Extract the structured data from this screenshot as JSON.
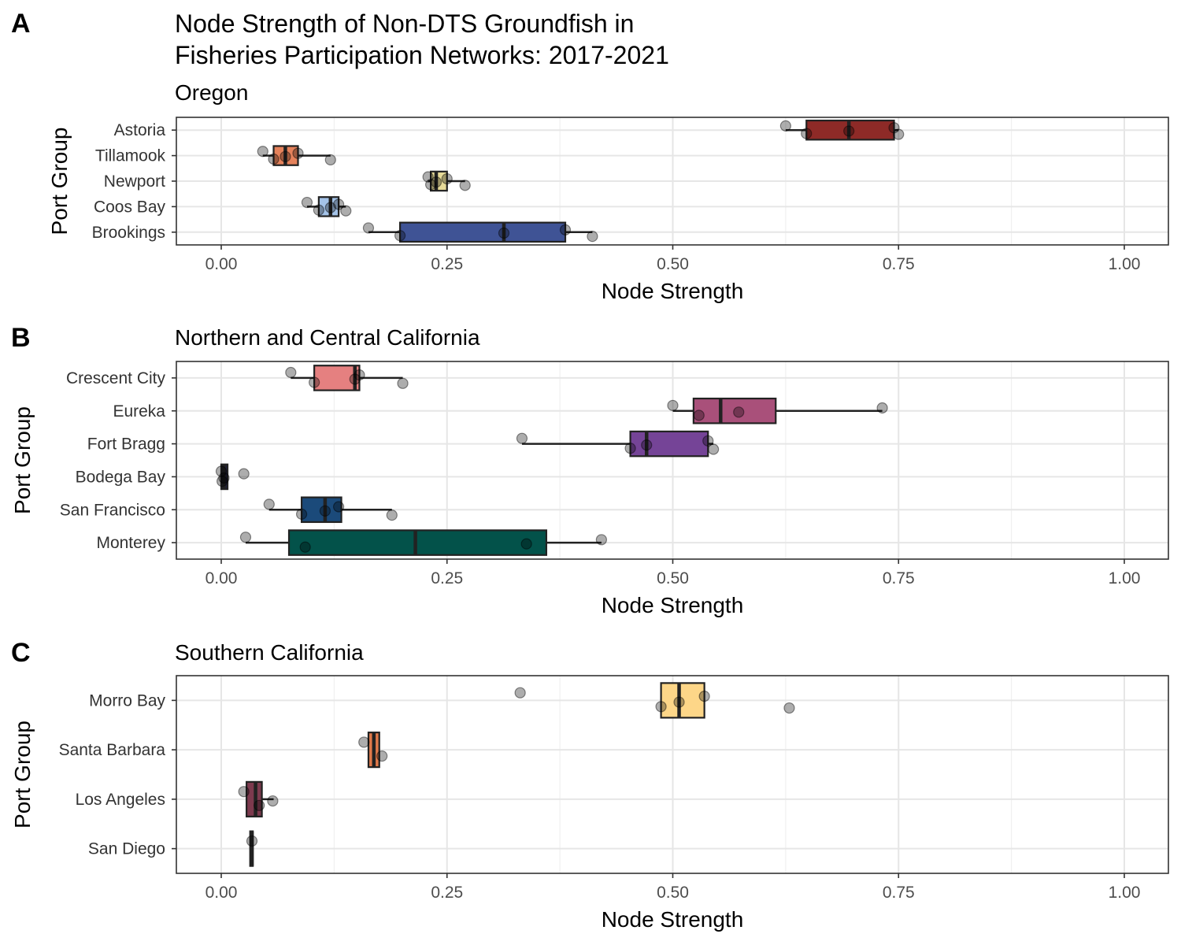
{
  "title_line1": "Node Strength of Non-DTS Groundfish in",
  "title_line2": "Fisheries Participation Networks: 2017-2021",
  "chart_data": [
    {
      "type": "boxplot",
      "tag": "A",
      "subtitle": "Oregon",
      "xlabel": "Node Strength",
      "ylabel": "Port Group",
      "xlim": [
        0,
        1
      ],
      "xticks": [
        0,
        0.25,
        0.5,
        0.75,
        1
      ],
      "xtick_labels": [
        "0.00",
        "0.25",
        "0.50",
        "0.75",
        "1.00"
      ],
      "grid": true,
      "groups": [
        {
          "label": "Astoria",
          "color": "#8e2a27",
          "min": 0.625,
          "q1": 0.648,
          "median": 0.695,
          "q3": 0.745,
          "max": 0.75,
          "points": [
            0.625,
            0.648,
            0.695,
            0.745,
            0.75
          ]
        },
        {
          "label": "Tillamook",
          "color": "#e5825b",
          "min": 0.046,
          "q1": 0.058,
          "median": 0.071,
          "q3": 0.085,
          "max": 0.121,
          "points": [
            0.046,
            0.058,
            0.071,
            0.085,
            0.121
          ]
        },
        {
          "label": "Newport",
          "color": "#e6da98",
          "min": 0.229,
          "q1": 0.232,
          "median": 0.238,
          "q3": 0.25,
          "max": 0.27,
          "points": [
            0.229,
            0.232,
            0.238,
            0.25,
            0.27
          ]
        },
        {
          "label": "Coos Bay",
          "color": "#a4c3e8",
          "min": 0.095,
          "q1": 0.108,
          "median": 0.121,
          "q3": 0.13,
          "max": 0.138,
          "points": [
            0.095,
            0.108,
            0.121,
            0.13,
            0.138
          ]
        },
        {
          "label": "Brookings",
          "color": "#3f5395",
          "min": 0.163,
          "q1": 0.198,
          "median": 0.313,
          "q3": 0.381,
          "max": 0.411,
          "points": [
            0.163,
            0.198,
            0.313,
            0.381,
            0.411
          ]
        }
      ]
    },
    {
      "type": "boxplot",
      "tag": "B",
      "subtitle": "Northern and Central California",
      "xlabel": "Node Strength",
      "ylabel": "Port Group",
      "xlim": [
        0,
        1
      ],
      "xticks": [
        0,
        0.25,
        0.5,
        0.75,
        1
      ],
      "xtick_labels": [
        "0.00",
        "0.25",
        "0.50",
        "0.75",
        "1.00"
      ],
      "grid": true,
      "groups": [
        {
          "label": "Crescent City",
          "color": "#e58080",
          "min": 0.077,
          "q1": 0.103,
          "median": 0.148,
          "q3": 0.153,
          "max": 0.201,
          "points": [
            0.077,
            0.103,
            0.148,
            0.153,
            0.201
          ]
        },
        {
          "label": "Eureka",
          "color": "#a9507a",
          "min": 0.5,
          "q1": 0.523,
          "median": 0.553,
          "q3": 0.614,
          "max": 0.732,
          "points": [
            0.5,
            0.529,
            0.573,
            0.732
          ]
        },
        {
          "label": "Fort Bragg",
          "color": "#754497",
          "min": 0.333,
          "q1": 0.453,
          "median": 0.471,
          "q3": 0.539,
          "max": 0.545,
          "points": [
            0.333,
            0.453,
            0.471,
            0.539,
            0.545
          ]
        },
        {
          "label": "Bodega Bay",
          "color": "#1f1f3d",
          "min": 0.0,
          "q1": 0.0,
          "median": 0.003,
          "q3": 0.007,
          "max": 0.007,
          "points": [
            0.0,
            0.001,
            0.003,
            0.025
          ]
        },
        {
          "label": "San Francisco",
          "color": "#1b4a7a",
          "min": 0.053,
          "q1": 0.089,
          "median": 0.115,
          "q3": 0.133,
          "max": 0.189,
          "points": [
            0.053,
            0.089,
            0.115,
            0.13,
            0.189
          ]
        },
        {
          "label": "Monterey",
          "color": "#03524a",
          "min": 0.027,
          "q1": 0.075,
          "median": 0.215,
          "q3": 0.36,
          "max": 0.421,
          "points": [
            0.027,
            0.093,
            0.338,
            0.421
          ]
        }
      ]
    },
    {
      "type": "boxplot",
      "tag": "C",
      "subtitle": "Southern California",
      "xlabel": "Node Strength",
      "ylabel": "Port Group",
      "xlim": [
        0,
        1
      ],
      "xticks": [
        0,
        0.25,
        0.5,
        0.75,
        1
      ],
      "xtick_labels": [
        "0.00",
        "0.25",
        "0.50",
        "0.75",
        "1.00"
      ],
      "grid": true,
      "groups": [
        {
          "label": "Morro Bay",
          "color": "#fdd688",
          "min": 0.487,
          "q1": 0.487,
          "median": 0.507,
          "q3": 0.535,
          "max": 0.535,
          "points": [
            0.331,
            0.487,
            0.507,
            0.535,
            0.629
          ]
        },
        {
          "label": "Santa Barbara",
          "color": "#e0794a",
          "min": 0.163,
          "q1": 0.163,
          "median": 0.169,
          "q3": 0.175,
          "max": 0.175,
          "points": [
            0.158,
            0.178
          ]
        },
        {
          "label": "Los Angeles",
          "color": "#7d3a4e",
          "min": 0.028,
          "q1": 0.028,
          "median": 0.038,
          "q3": 0.045,
          "max": 0.058,
          "points": [
            0.025,
            0.042,
            0.057
          ]
        },
        {
          "label": "San Diego",
          "color": "#5a1f33",
          "min": 0.032,
          "q1": 0.032,
          "median": 0.034,
          "q3": 0.035,
          "max": 0.035,
          "points": [
            0.034
          ]
        }
      ]
    }
  ]
}
